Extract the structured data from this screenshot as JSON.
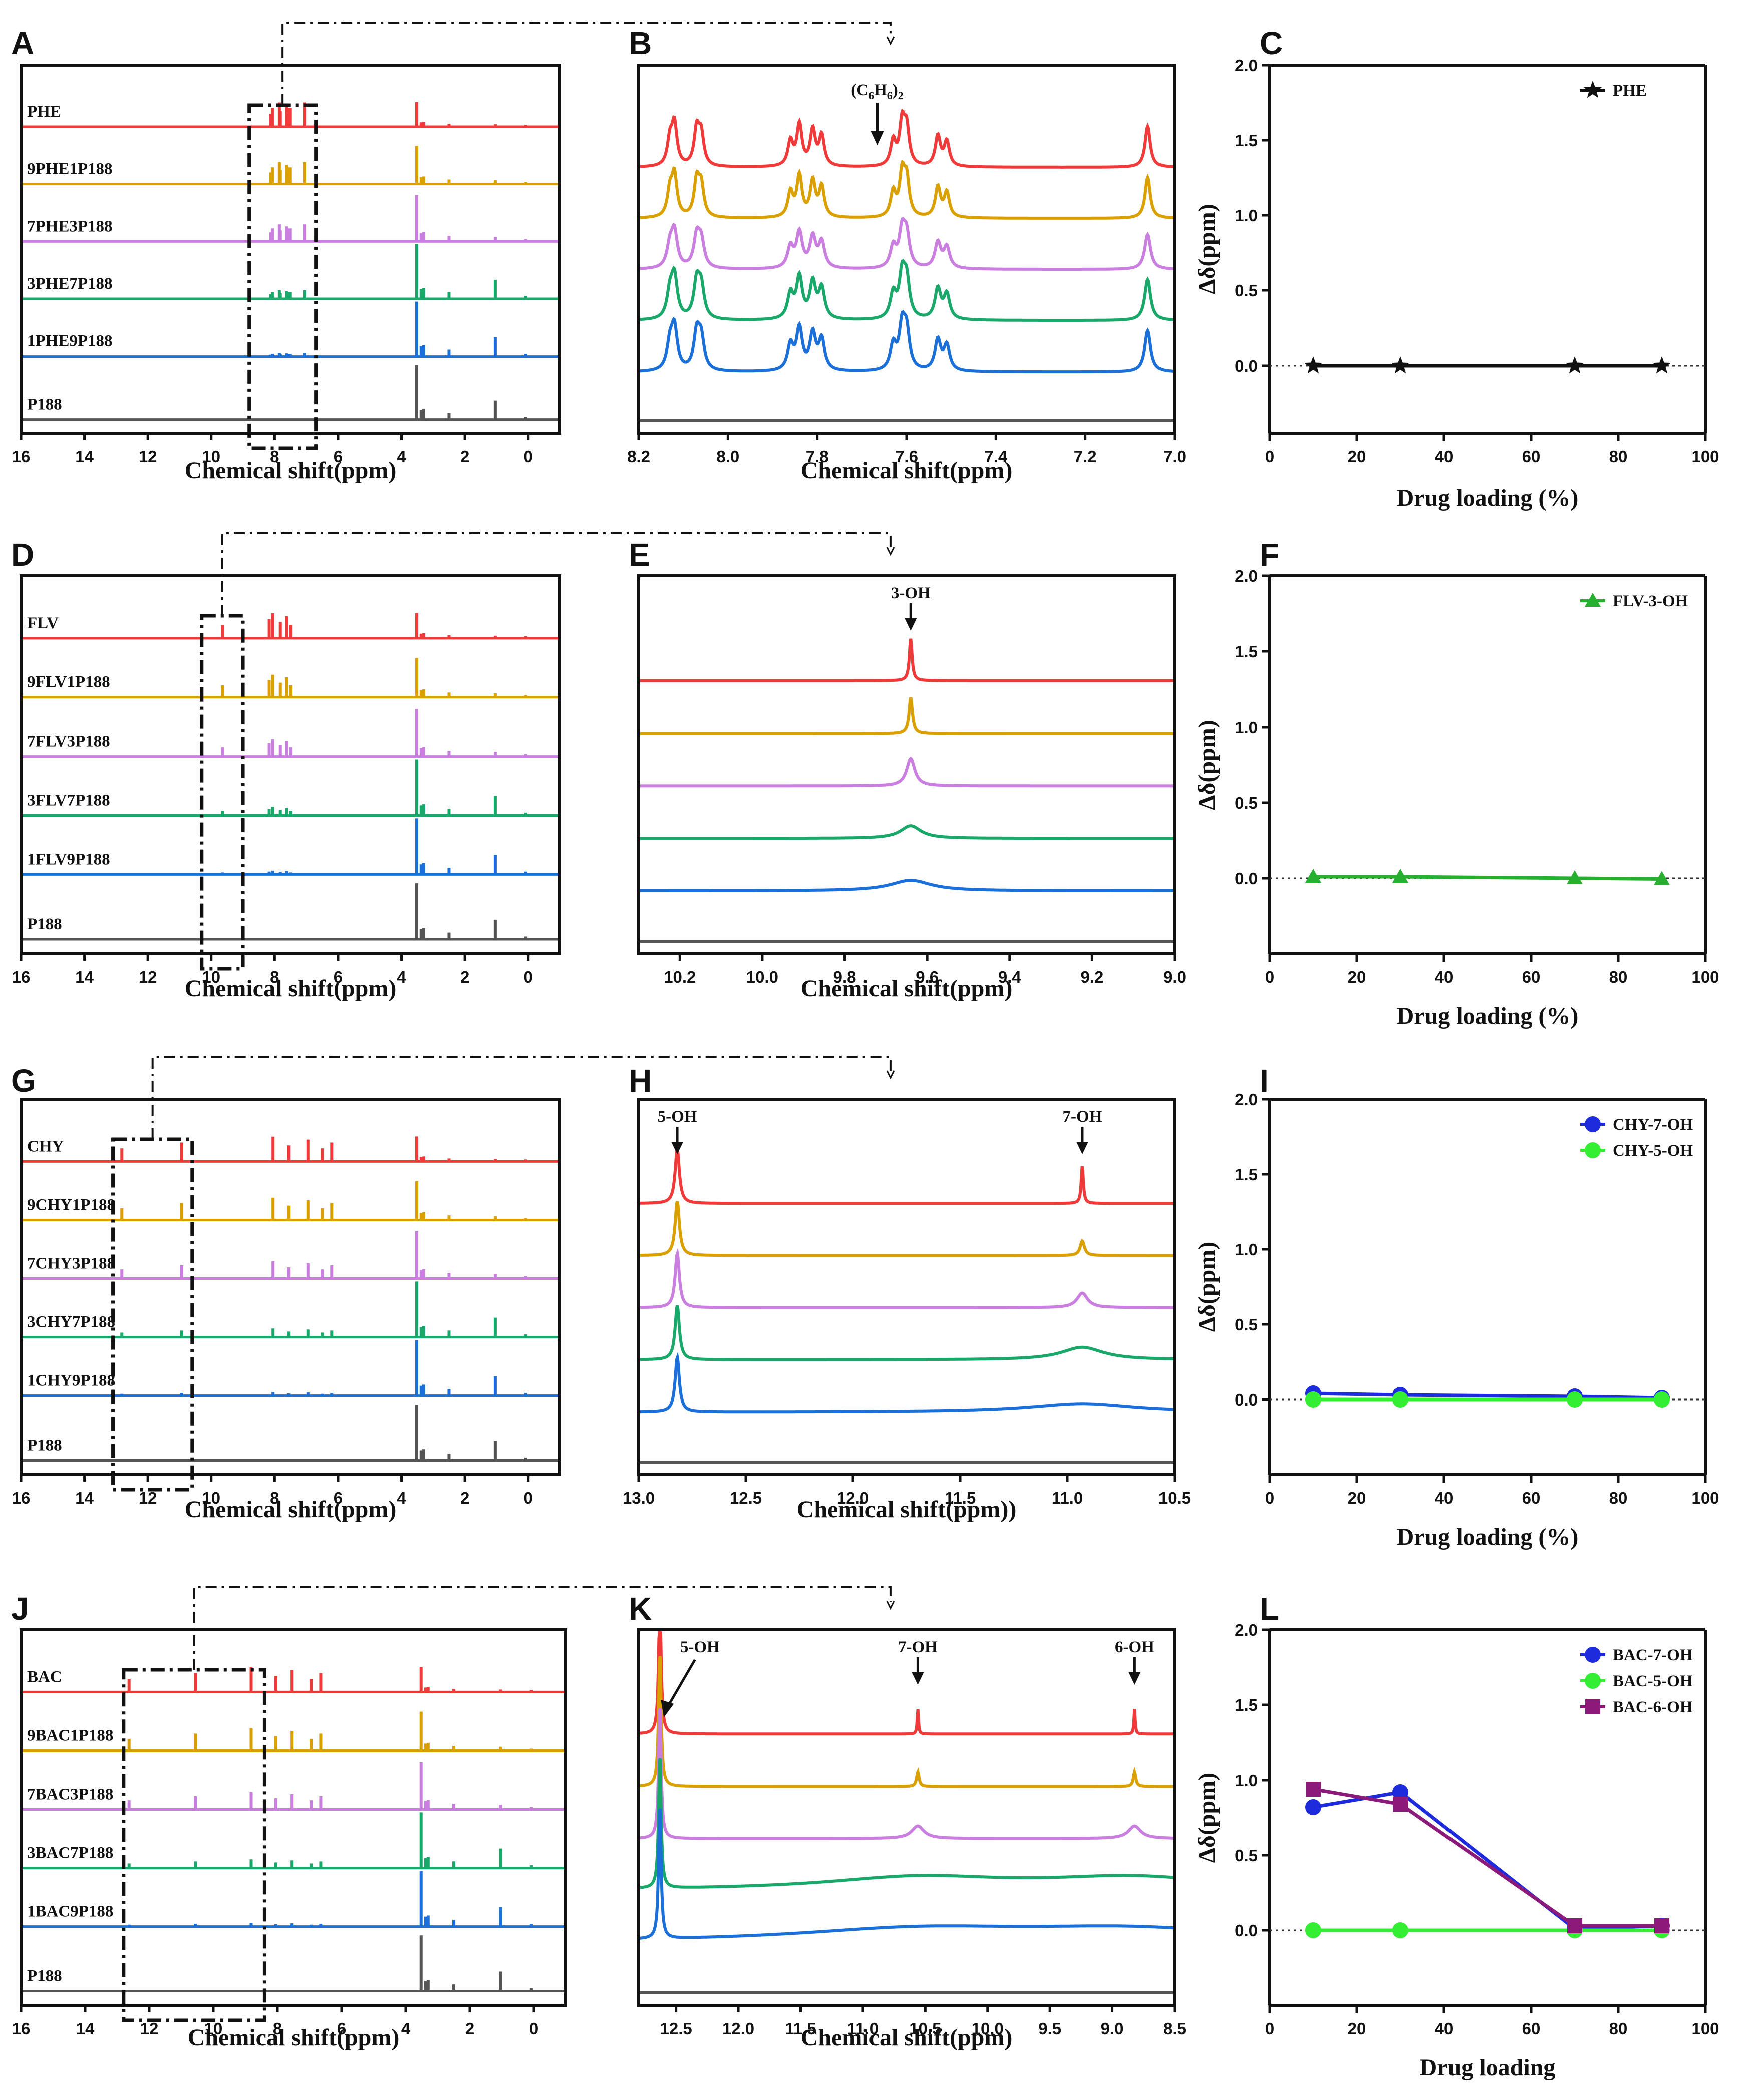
{
  "figure": {
    "colors": {
      "red": "#f03a3a",
      "orange": "#d9a000",
      "purple": "#c97ee0",
      "green": "#1aa86a",
      "blue": "#1a6fd8",
      "gray": "#555555"
    }
  },
  "chart_data": [
    {
      "id": "A",
      "type": "line",
      "panel_label": "A",
      "xlabel": "Chemical shift(ppm)",
      "xlim": [
        16,
        -1
      ],
      "xticks": [
        "16",
        "14",
        "12",
        "10",
        "8",
        "6",
        "4",
        "2",
        "0"
      ],
      "series_labels": [
        "PHE",
        "9PHE1P188",
        "7PHE3P188",
        "3PHE7P188",
        "1PHE9P188",
        "P188"
      ],
      "drug_peaks_ppm": [
        8.12,
        8.07,
        7.85,
        7.82,
        7.62,
        7.6,
        7.52,
        7.06
      ],
      "polymer_peaks_ppm": [
        3.52,
        3.38,
        3.3,
        2.5,
        1.04,
        0.08
      ],
      "zoom_box_ppm": [
        8.8,
        6.7
      ]
    },
    {
      "id": "B",
      "type": "line",
      "panel_label": "B",
      "xlabel": "Chemical shift(ppm)",
      "xlim": [
        8.2,
        7.0
      ],
      "xticks": [
        "8.2",
        "8.0",
        "7.8",
        "7.6",
        "7.4",
        "7.2",
        "7.0"
      ],
      "annotations": [
        {
          "text": "(C6H6)2",
          "ppm": 7.66
        }
      ],
      "peaks_ppm": [
        8.13,
        8.12,
        8.07,
        8.06,
        7.86,
        7.84,
        7.81,
        7.79,
        7.63,
        7.61,
        7.6,
        7.53,
        7.51,
        7.06
      ]
    },
    {
      "id": "C",
      "type": "line",
      "panel_label": "C",
      "xlabel": "Drug loading (%)",
      "ylabel": "Δδ(ppm)",
      "xlim": [
        0,
        100
      ],
      "ylim": [
        -0.45,
        2.0
      ],
      "xticks": [
        "0",
        "20",
        "40",
        "60",
        "80",
        "100"
      ],
      "yticks": [
        "0.0",
        "0.5",
        "1.0",
        "1.5",
        "2.0"
      ],
      "series": [
        {
          "name": "PHE",
          "marker": "star",
          "color": "#111111",
          "x": [
            10,
            30,
            70,
            90
          ],
          "y": [
            0,
            0,
            0,
            0
          ]
        }
      ]
    },
    {
      "id": "D",
      "type": "line",
      "panel_label": "D",
      "xlabel": "Chemical shift(ppm)",
      "xlim": [
        16,
        -1
      ],
      "xticks": [
        "16",
        "14",
        "12",
        "10",
        "8",
        "6",
        "4",
        "2",
        "0"
      ],
      "series_labels": [
        "FLV",
        "9FLV1P188",
        "7FLV3P188",
        "3FLV7P188",
        "1FLV9P188",
        "P188"
      ],
      "drug_peaks_ppm": [
        9.64,
        8.17,
        8.06,
        7.82,
        7.62,
        7.5
      ],
      "polymer_peaks_ppm": [
        3.52,
        3.38,
        3.3,
        2.5,
        1.04,
        0.08
      ],
      "zoom_box_ppm": [
        10.3,
        9.0
      ]
    },
    {
      "id": "E",
      "type": "line",
      "panel_label": "E",
      "xlabel": "Chemical shift(ppm)",
      "xlim": [
        10.3,
        9.0
      ],
      "xticks": [
        "10.2",
        "10.0",
        "9.8",
        "9.6",
        "9.4",
        "9.2",
        "9.0"
      ],
      "annotations": [
        {
          "text": "3-OH",
          "ppm": 9.64
        }
      ],
      "peaks_ppm": [
        9.64
      ]
    },
    {
      "id": "F",
      "type": "line",
      "panel_label": "F",
      "xlabel": "Drug loading (%)",
      "ylabel": "Δδ(ppm)",
      "xlim": [
        0,
        100
      ],
      "ylim": [
        -0.5,
        2.0
      ],
      "xticks": [
        "0",
        "20",
        "40",
        "60",
        "80",
        "100"
      ],
      "yticks": [
        "0.0",
        "0.5",
        "1.0",
        "1.5",
        "2.0"
      ],
      "series": [
        {
          "name": "FLV-3-OH",
          "marker": "triangle",
          "color": "#27b030",
          "x": [
            10,
            30,
            70,
            90
          ],
          "y": [
            0.01,
            0.01,
            0.0,
            -0.005
          ]
        }
      ]
    },
    {
      "id": "G",
      "type": "line",
      "panel_label": "G",
      "xlabel": "Chemical shift(ppm)",
      "xlim": [
        16,
        -1
      ],
      "xticks": [
        "16",
        "14",
        "12",
        "10",
        "8",
        "6",
        "4",
        "2",
        "0"
      ],
      "series_labels": [
        "CHY",
        "9CHY1P188",
        "7CHY3P188",
        "3CHY7P188",
        "1CHY9P188",
        "P188"
      ],
      "drug_peaks_ppm": [
        12.82,
        10.93,
        8.05,
        7.56,
        6.95,
        6.5,
        6.2
      ],
      "polymer_peaks_ppm": [
        3.52,
        3.38,
        3.3,
        2.5,
        1.04,
        0.08
      ],
      "zoom_box_ppm": [
        13.1,
        10.6
      ]
    },
    {
      "id": "H",
      "type": "line",
      "panel_label": "H",
      "xlabel": "Chemical shift(ppm))",
      "xlim": [
        13.0,
        10.5
      ],
      "xticks": [
        "13.0",
        "12.5",
        "12.0",
        "11.5",
        "11.0",
        "10.5"
      ],
      "annotations": [
        {
          "text": "5-OH",
          "ppm": 12.82
        },
        {
          "text": "7-OH",
          "ppm": 10.93
        }
      ],
      "peaks_ppm": [
        12.82,
        10.93
      ]
    },
    {
      "id": "I",
      "type": "line",
      "panel_label": "I",
      "xlabel": "Drug loading (%)",
      "ylabel": "Δδ(ppm)",
      "xlim": [
        0,
        100
      ],
      "ylim": [
        -0.5,
        2.0
      ],
      "xticks": [
        "0",
        "20",
        "40",
        "60",
        "80",
        "100"
      ],
      "yticks": [
        "0.0",
        "0.5",
        "1.0",
        "1.5",
        "2.0"
      ],
      "series": [
        {
          "name": "CHY-7-OH",
          "marker": "circle",
          "color": "#1d2bdc",
          "x": [
            10,
            30,
            70,
            90
          ],
          "y": [
            0.04,
            0.03,
            0.02,
            0.01
          ]
        },
        {
          "name": "CHY-5-OH",
          "marker": "circle",
          "color": "#33ee33",
          "x": [
            10,
            30,
            70,
            90
          ],
          "y": [
            0.0,
            0.0,
            0.0,
            0.0
          ]
        }
      ]
    },
    {
      "id": "J",
      "type": "line",
      "panel_label": "J",
      "xlabel": "Chemical shift(ppm)",
      "xlim": [
        16,
        -1
      ],
      "xticks": [
        "16",
        "14",
        "12",
        "10",
        "8",
        "6",
        "4",
        "2",
        "0"
      ],
      "series_labels": [
        "BAC",
        "9BAC1P188",
        "7BAC3P188",
        "3BAC7P188",
        "1BAC9P188",
        "P188"
      ],
      "drug_peaks_ppm": [
        12.63,
        10.56,
        8.82,
        8.05,
        7.56,
        6.95,
        6.65
      ],
      "polymer_peaks_ppm": [
        3.52,
        3.38,
        3.3,
        2.5,
        1.04,
        0.08
      ],
      "zoom_box_ppm": [
        12.8,
        8.4
      ]
    },
    {
      "id": "K",
      "type": "line",
      "panel_label": "K",
      "xlabel": "Chemical shift(ppm)",
      "xlim": [
        12.8,
        8.5
      ],
      "xticks": [
        "12.5",
        "12.0",
        "11.5",
        "11.0",
        "10.5",
        "10.0",
        "9.5",
        "9.0",
        "8.5"
      ],
      "annotations": [
        {
          "text": "5-OH",
          "ppm": 12.63
        },
        {
          "text": "7-OH",
          "ppm": 10.56
        },
        {
          "text": "6-OH",
          "ppm": 8.82
        }
      ],
      "peaks_ppm": [
        12.63,
        10.56,
        8.82
      ]
    },
    {
      "id": "L",
      "type": "line",
      "panel_label": "L",
      "xlabel": "Drug loading",
      "ylabel": "Δδ(ppm)",
      "xlim": [
        0,
        100
      ],
      "ylim": [
        -0.5,
        2.0
      ],
      "xticks": [
        "0",
        "20",
        "40",
        "60",
        "80",
        "100"
      ],
      "yticks": [
        "0.0",
        "0.5",
        "1.0",
        "1.5",
        "2.0"
      ],
      "series": [
        {
          "name": "BAC-7-OH",
          "marker": "circle",
          "color": "#1d2bdc",
          "x": [
            10,
            30,
            70,
            90
          ],
          "y": [
            0.82,
            0.92,
            0.01,
            0.03
          ]
        },
        {
          "name": "BAC-5-OH",
          "marker": "circle",
          "color": "#33ee33",
          "x": [
            10,
            30,
            70,
            90
          ],
          "y": [
            0.0,
            0.0,
            0.0,
            0.0
          ]
        },
        {
          "name": "BAC-6-OH",
          "marker": "square",
          "color": "#8b1a7a",
          "x": [
            10,
            30,
            70,
            90
          ],
          "y": [
            0.94,
            0.84,
            0.03,
            0.03
          ]
        }
      ]
    }
  ]
}
